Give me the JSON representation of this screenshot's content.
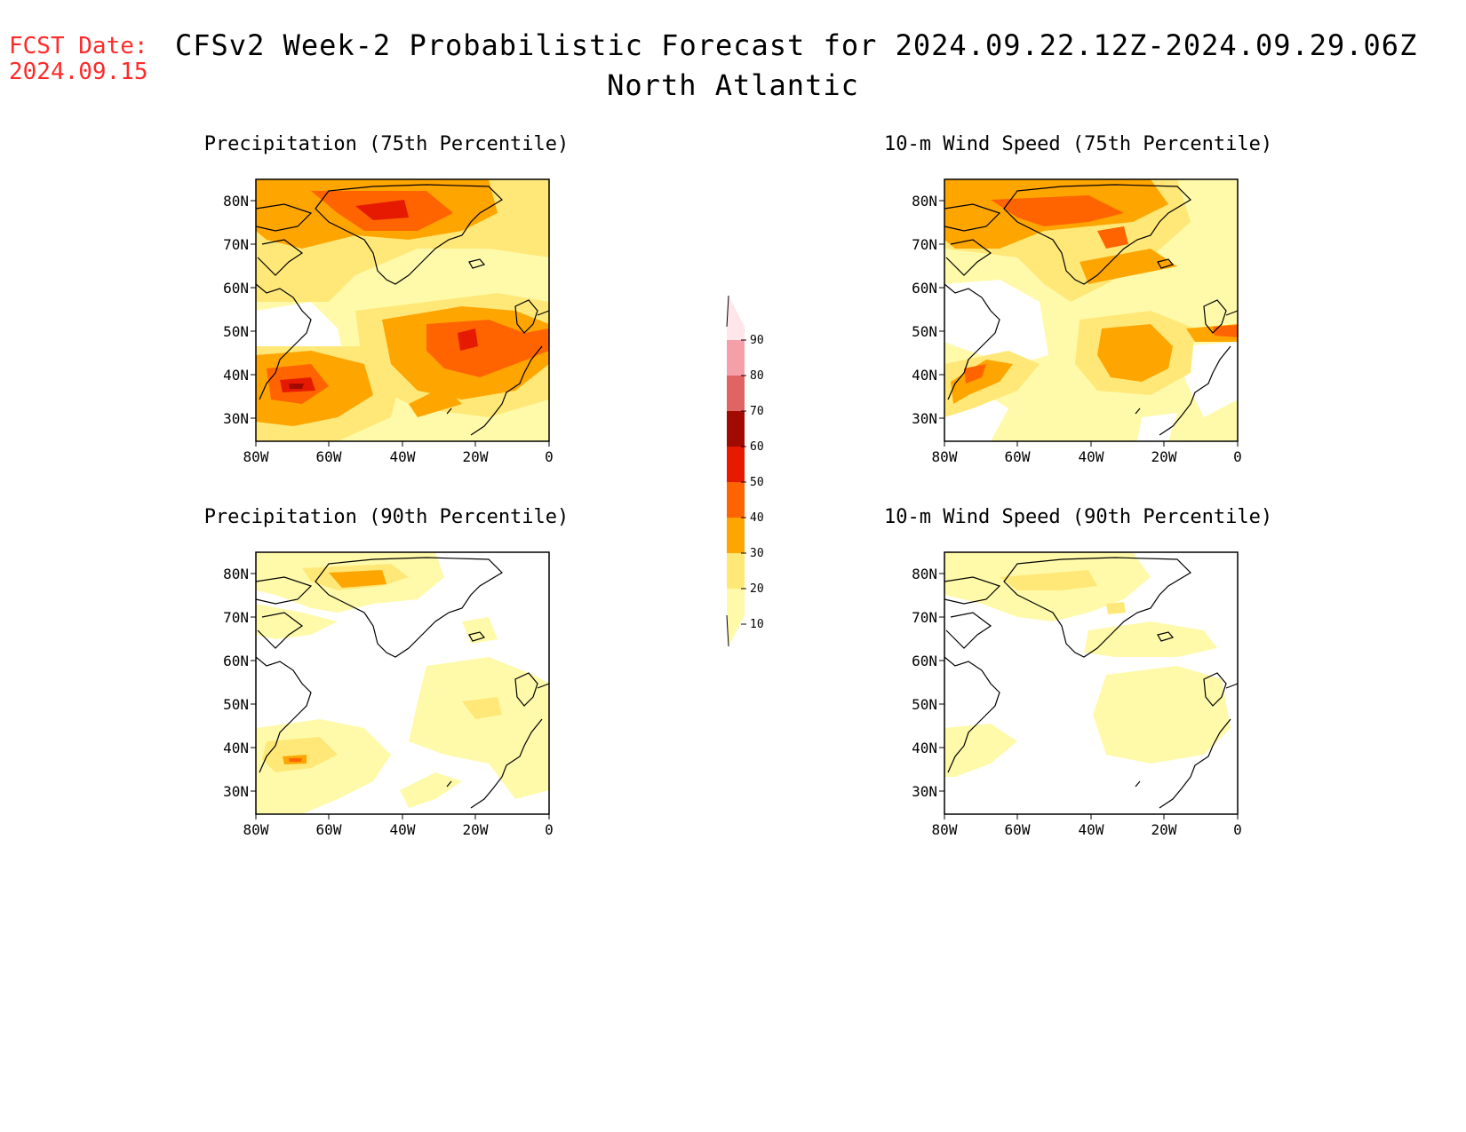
{
  "header": {
    "fcst_label": "FCST Date:",
    "fcst_date": "2024.09.15",
    "title": "CFSv2 Week-2 Probabilistic Forecast for 2024.09.22.12Z-2024.09.29.06Z",
    "region": "North Atlantic"
  },
  "axes": {
    "lon_ticks": [
      "80W",
      "60W",
      "40W",
      "20W",
      "0"
    ],
    "lat_ticks": [
      "80N",
      "70N",
      "60N",
      "50N",
      "40N",
      "30N"
    ]
  },
  "panels": [
    {
      "id": "precip75",
      "title": "Precipitation (75th Percentile)"
    },
    {
      "id": "wind75",
      "title": "10-m Wind Speed (75th Percentile)"
    },
    {
      "id": "precip90",
      "title": "Precipitation (90th Percentile)"
    },
    {
      "id": "wind90",
      "title": "10-m Wind Speed (90th Percentile)"
    }
  ],
  "legend": {
    "labels": [
      "10",
      "20",
      "30",
      "40",
      "50",
      "60",
      "70",
      "80",
      "90"
    ],
    "colors": [
      "#fffaaa",
      "#ffe878",
      "#ffa500",
      "#ff6400",
      "#e61a00",
      "#a00a00",
      "#e06464",
      "#f5a0a8",
      "#ffe6ea"
    ]
  }
}
